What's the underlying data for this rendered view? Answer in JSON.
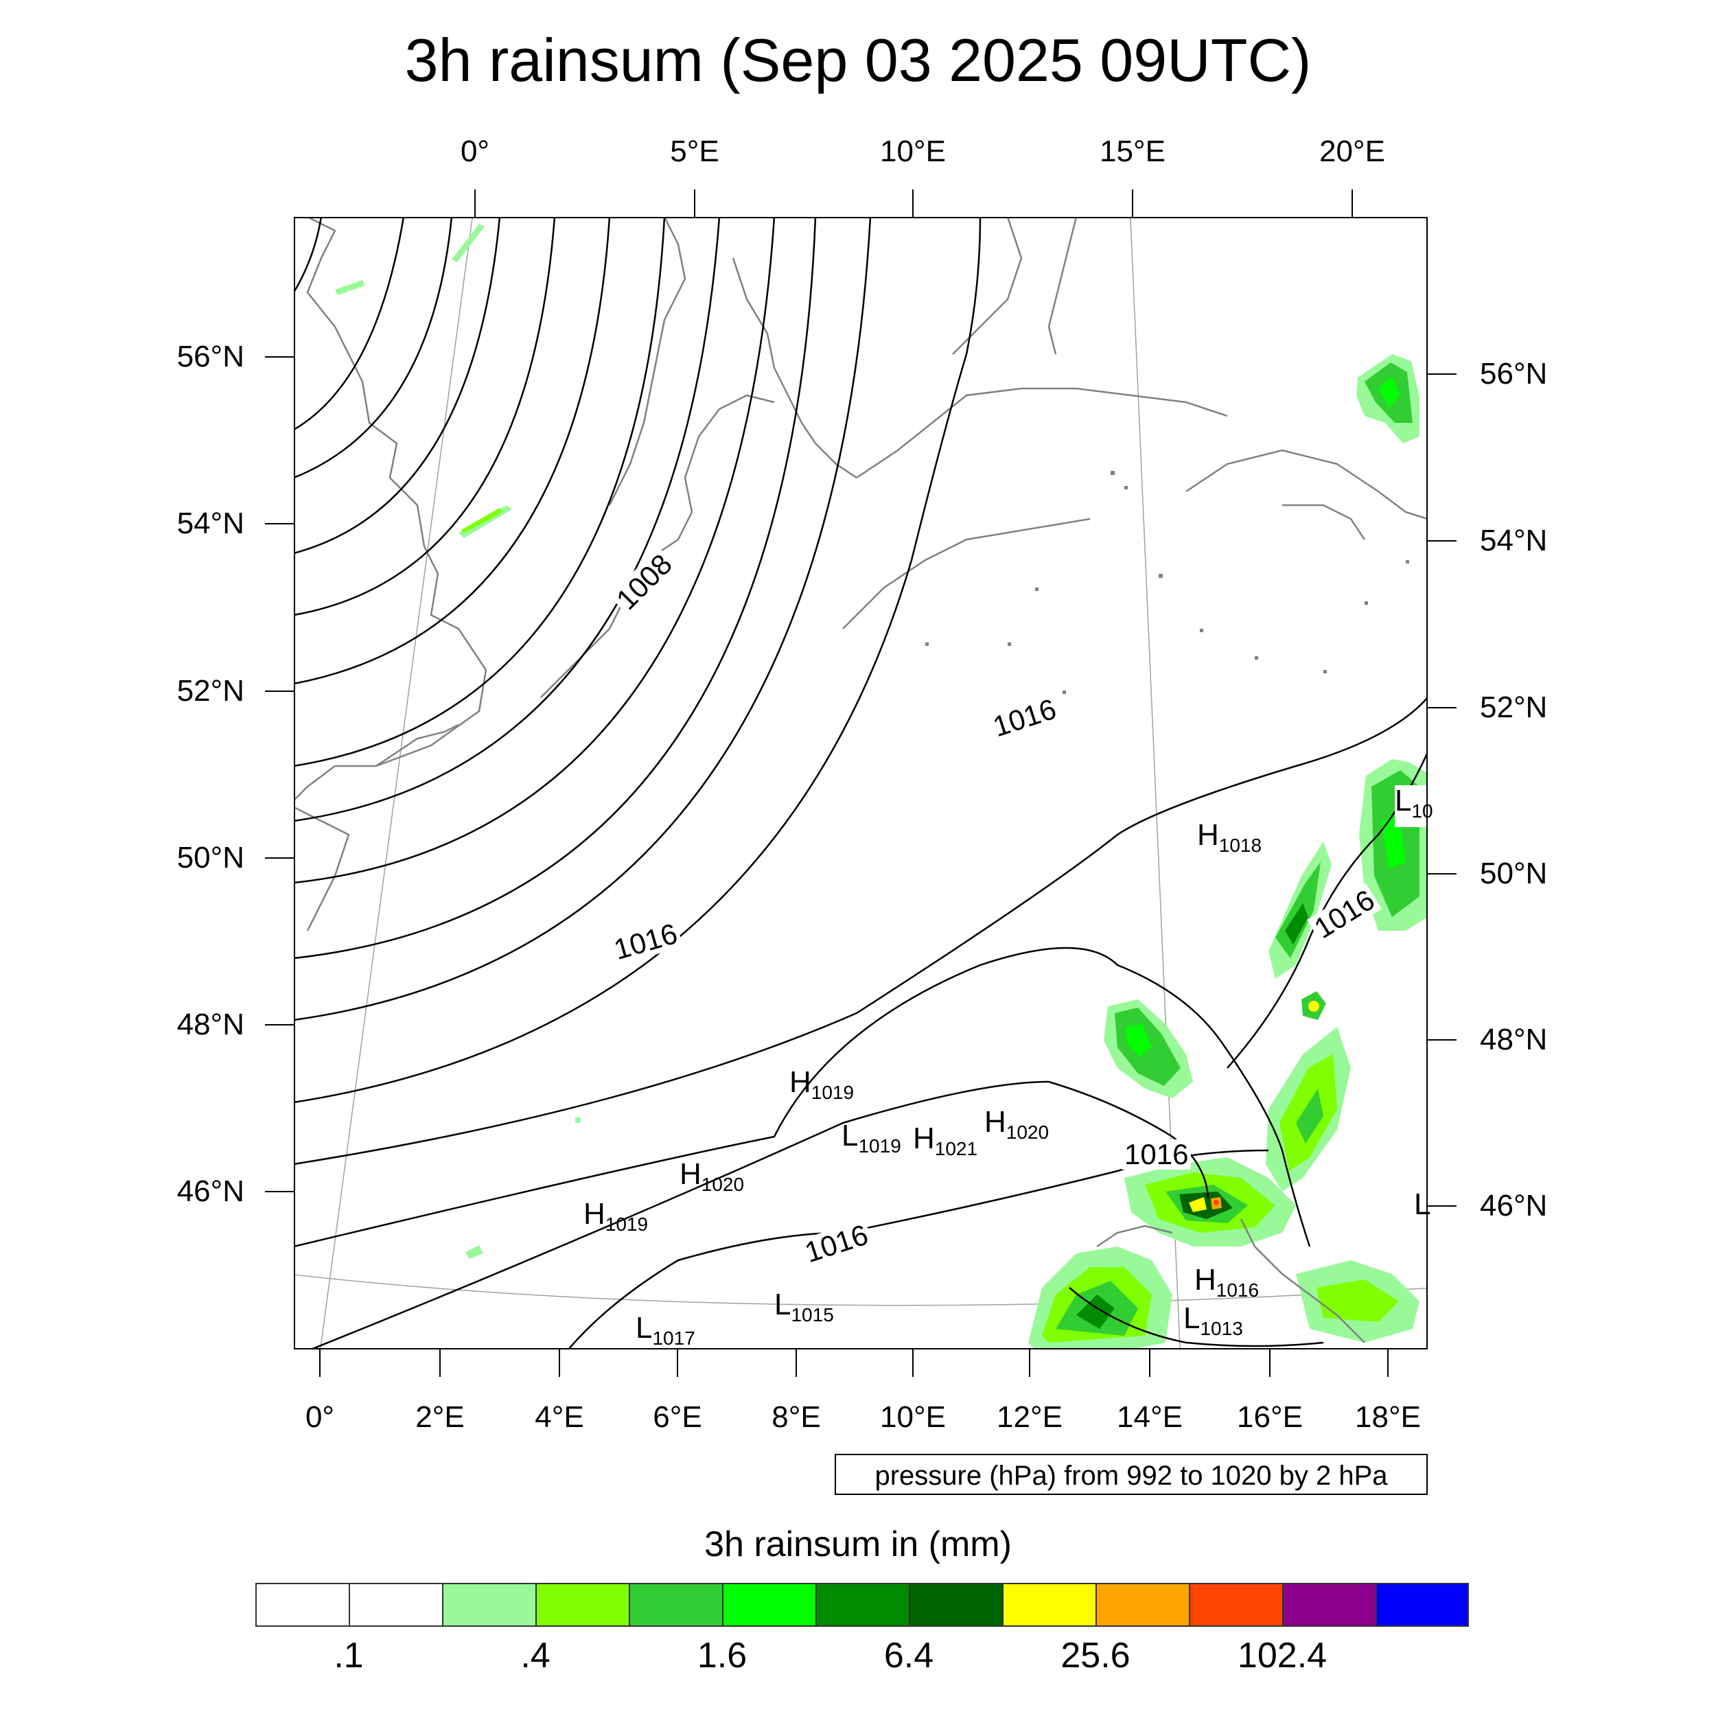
{
  "title": "3h rainsum (Sep 03 2025 09UTC)",
  "axes": {
    "top_lon_labels": [
      "0°",
      "5°E",
      "10°E",
      "15°E",
      "20°E"
    ],
    "bottom_lon_labels": [
      "0°",
      "2°E",
      "4°E",
      "6°E",
      "8°E",
      "10°E",
      "12°E",
      "14°E",
      "16°E",
      "18°E"
    ],
    "left_lat_labels": [
      "56°N",
      "54°N",
      "52°N",
      "50°N",
      "48°N",
      "46°N"
    ],
    "right_lat_labels": [
      "56°N",
      "54°N",
      "52°N",
      "50°N",
      "48°N",
      "46°N"
    ]
  },
  "contour_labels": [
    "1008",
    "1016",
    "1016",
    "1016",
    "1016",
    "1016"
  ],
  "pressure_centers": [
    {
      "type": "H",
      "value": "1018"
    },
    {
      "type": "L",
      "value": "10"
    },
    {
      "type": "H",
      "value": "1019"
    },
    {
      "type": "L",
      "value": "1019"
    },
    {
      "type": "H",
      "value": "1021"
    },
    {
      "type": "H",
      "value": "1020"
    },
    {
      "type": "H",
      "value": "1020"
    },
    {
      "type": "H",
      "value": "1019"
    },
    {
      "type": "L",
      "value": "1015"
    },
    {
      "type": "L",
      "value": "1017"
    },
    {
      "type": "H",
      "value": "1016"
    },
    {
      "type": "L",
      "value": "1013"
    },
    {
      "type": "L",
      "value": ""
    }
  ],
  "contour_info": "pressure (hPa) from 992 to 1020 by 2 hPa",
  "colorbar": {
    "title": "3h rainsum in (mm)",
    "colors": [
      "#ffffff",
      "#ffffff",
      "#99f999",
      "#7fff00",
      "#32cd32",
      "#00ff00",
      "#008b00",
      "#006400",
      "#ffff00",
      "#ffa500",
      "#ff4500",
      "#8b008b",
      "#0000ff"
    ],
    "tick_labels": [
      ".1",
      ".4",
      "1.6",
      "6.4",
      "25.6",
      "102.4"
    ]
  },
  "colors": {
    "land_border": "#808080",
    "isobar": "#000000",
    "graticule": "#a0a0a0"
  }
}
